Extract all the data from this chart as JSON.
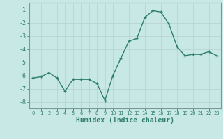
{
  "x": [
    0,
    1,
    2,
    3,
    4,
    5,
    6,
    7,
    8,
    9,
    10,
    11,
    12,
    13,
    14,
    15,
    16,
    17,
    18,
    19,
    20,
    21,
    22,
    23
  ],
  "y": [
    -6.2,
    -6.1,
    -5.8,
    -6.2,
    -7.2,
    -6.3,
    -6.3,
    -6.3,
    -6.6,
    -7.9,
    -6.0,
    -4.7,
    -3.4,
    -3.2,
    -1.6,
    -1.1,
    -1.2,
    -2.1,
    -3.8,
    -4.5,
    -4.4,
    -4.4,
    -4.2,
    -4.5
  ],
  "xlim": [
    -0.5,
    23.5
  ],
  "ylim": [
    -8.5,
    -0.5
  ],
  "yticks": [
    -8,
    -7,
    -6,
    -5,
    -4,
    -3,
    -2,
    -1
  ],
  "xtick_labels": [
    "0",
    "1",
    "2",
    "3",
    "4",
    "5",
    "6",
    "7",
    "8",
    "9",
    "10",
    "11",
    "12",
    "13",
    "14",
    "15",
    "16",
    "17",
    "18",
    "19",
    "20",
    "21",
    "22",
    "23"
  ],
  "xlabel": "Humidex (Indice chaleur)",
  "line_color": "#2e7d6e",
  "marker": "+",
  "bg_color": "#c8e8e5",
  "grid_color": "#b8d4d2",
  "label_color": "#2e7d6e",
  "tick_color": "#2e7d6e",
  "spine_color": "#7a9a9a"
}
